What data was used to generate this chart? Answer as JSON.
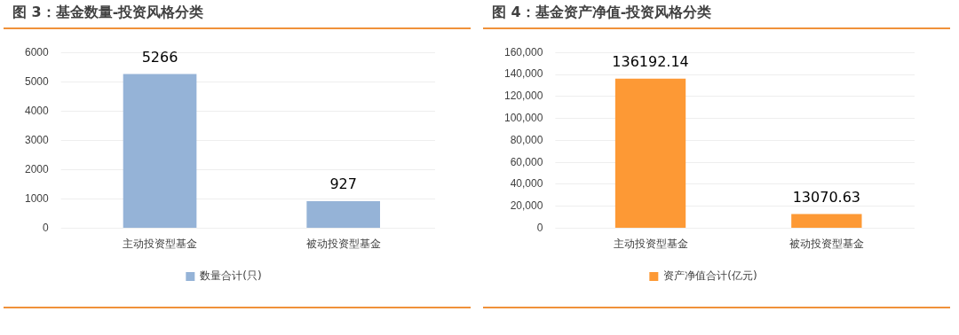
{
  "chart_data": [
    {
      "type": "bar",
      "title": "图 3：基金数量-投资风格分类",
      "categories": [
        "主动投资型基金",
        "被动投资型基金"
      ],
      "series": [
        {
          "name": "数量合计(只)",
          "color": "#95b3d7",
          "values": [
            5266,
            927
          ]
        }
      ],
      "ylim": [
        0,
        6000
      ],
      "yticks": [
        0,
        1000,
        2000,
        3000,
        4000,
        5000,
        6000
      ],
      "grid": "y",
      "legend": "bottom",
      "data_labels": true
    },
    {
      "type": "bar",
      "title": "图 4：基金资产净值-投资风格分类",
      "categories": [
        "主动投资型基金",
        "被动投资型基金"
      ],
      "series": [
        {
          "name": "资产净值合计(亿元)",
          "color": "#fd9935",
          "values": [
            136192.14,
            13070.63
          ]
        }
      ],
      "ylim": [
        0,
        160000
      ],
      "yticks": [
        0,
        {
          "value": 20000,
          "label": "20,000"
        },
        {
          "value": 40000,
          "label": "40,000"
        },
        {
          "value": 60000,
          "label": "60,000"
        },
        {
          "value": 80000,
          "label": "80,000"
        },
        {
          "value": 100000,
          "label": "100,000"
        },
        {
          "value": 120000,
          "label": "120,000"
        },
        {
          "value": 140000,
          "label": "140,000"
        },
        {
          "value": 160000,
          "label": "160,000"
        }
      ],
      "grid": "y",
      "legend": "bottom",
      "data_labels": true
    }
  ]
}
